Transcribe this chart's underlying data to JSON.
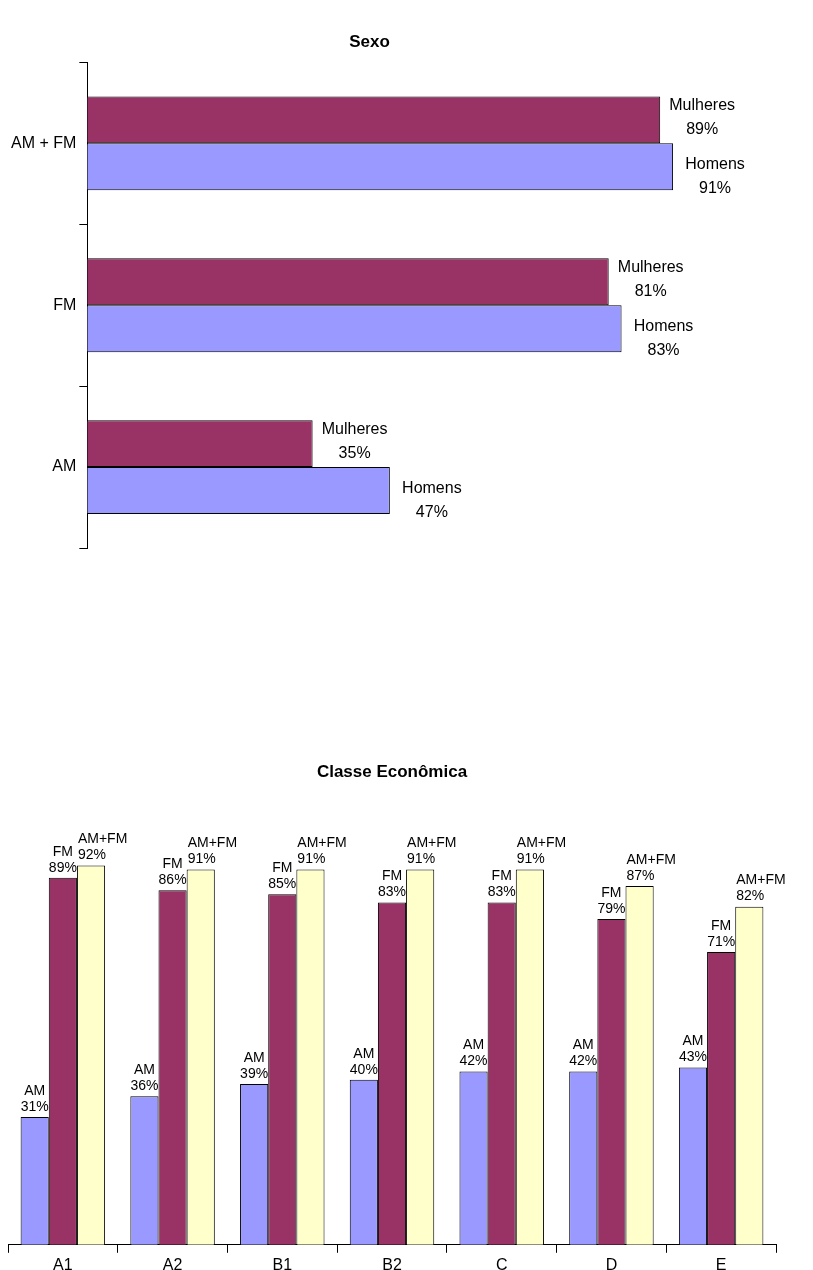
{
  "chart_data": [
    {
      "type": "bar",
      "title": "Sexo",
      "orientation": "horizontal",
      "tick_labels": "y",
      "categories": [
        "AM + FM",
        "FM",
        "AM"
      ],
      "series": [
        {
          "name": "Mulheres",
          "color": "#993366",
          "values": [
            89,
            81,
            35
          ],
          "value_labels": [
            "89%",
            "81%",
            "35%"
          ]
        },
        {
          "name": "Homens",
          "color": "#9999ff",
          "values": [
            91,
            83,
            47
          ],
          "value_labels": [
            "91%",
            "83%",
            "47%"
          ]
        }
      ]
    },
    {
      "type": "bar",
      "title": "Classe Econômica",
      "tick_labels": "x",
      "categories": [
        "A1",
        "A2",
        "B1",
        "B2",
        "C",
        "D",
        "E"
      ],
      "series": [
        {
          "name": "AM",
          "color": "#9999ff",
          "values": [
            31,
            36,
            39,
            40,
            42,
            42,
            43
          ],
          "value_labels": [
            "31%",
            "36%",
            "39%",
            "40%",
            "42%",
            "42%",
            "43%"
          ]
        },
        {
          "name": "FM",
          "color": "#993366",
          "values": [
            89,
            86,
            85,
            83,
            83,
            79,
            71
          ],
          "value_labels": [
            "89%",
            "86%",
            "85%",
            "83%",
            "83%",
            "79%",
            "71%"
          ]
        },
        {
          "name": "AM+FM",
          "color": "#ffffcc",
          "values": [
            92,
            91,
            91,
            91,
            91,
            87,
            82
          ],
          "value_labels": [
            "92%",
            "91%",
            "91%",
            "91%",
            "91%",
            "87%",
            "82%"
          ]
        }
      ]
    }
  ]
}
